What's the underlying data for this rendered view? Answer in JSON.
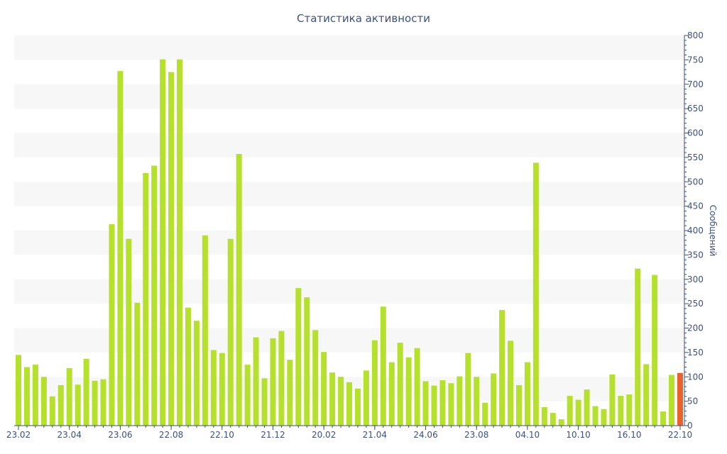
{
  "chart_data": {
    "type": "bar",
    "title": "Статистика активности",
    "xlabel": "",
    "ylabel": "Сообщений",
    "ylim": [
      0,
      800
    ],
    "y_ticks": [
      0,
      50,
      100,
      150,
      200,
      250,
      300,
      350,
      400,
      450,
      500,
      550,
      600,
      650,
      700,
      750,
      800
    ],
    "x_tick_labels": [
      "23.02",
      "23.04",
      "23.06",
      "22.08",
      "22.10",
      "21.12",
      "20.02",
      "21.04",
      "24.06",
      "23.08",
      "04.10",
      "10.10",
      "16.10",
      "22.10"
    ],
    "y_axis_position": "right",
    "grid": "alternating horizontal bands",
    "colors": {
      "bar": "#b5e02c",
      "highlight": "#e8622c",
      "band": "#f7f7f7",
      "axis": "#3b4f8a"
    },
    "values": [
      145,
      120,
      125,
      100,
      60,
      83,
      118,
      84,
      137,
      92,
      95,
      413,
      727,
      383,
      252,
      518,
      533,
      751,
      725,
      751,
      242,
      215,
      390,
      155,
      149,
      383,
      557,
      125,
      181,
      97,
      179,
      194,
      135,
      282,
      263,
      196,
      151,
      109,
      100,
      89,
      76,
      113,
      175,
      244,
      130,
      170,
      140,
      159,
      91,
      82,
      93,
      87,
      101,
      149,
      100,
      47,
      107,
      237,
      174,
      83,
      130,
      539,
      38,
      26,
      13,
      61,
      53,
      74,
      40,
      34,
      105,
      61,
      64,
      322,
      126,
      309,
      29,
      104,
      108
    ],
    "highlight_last": true
  }
}
